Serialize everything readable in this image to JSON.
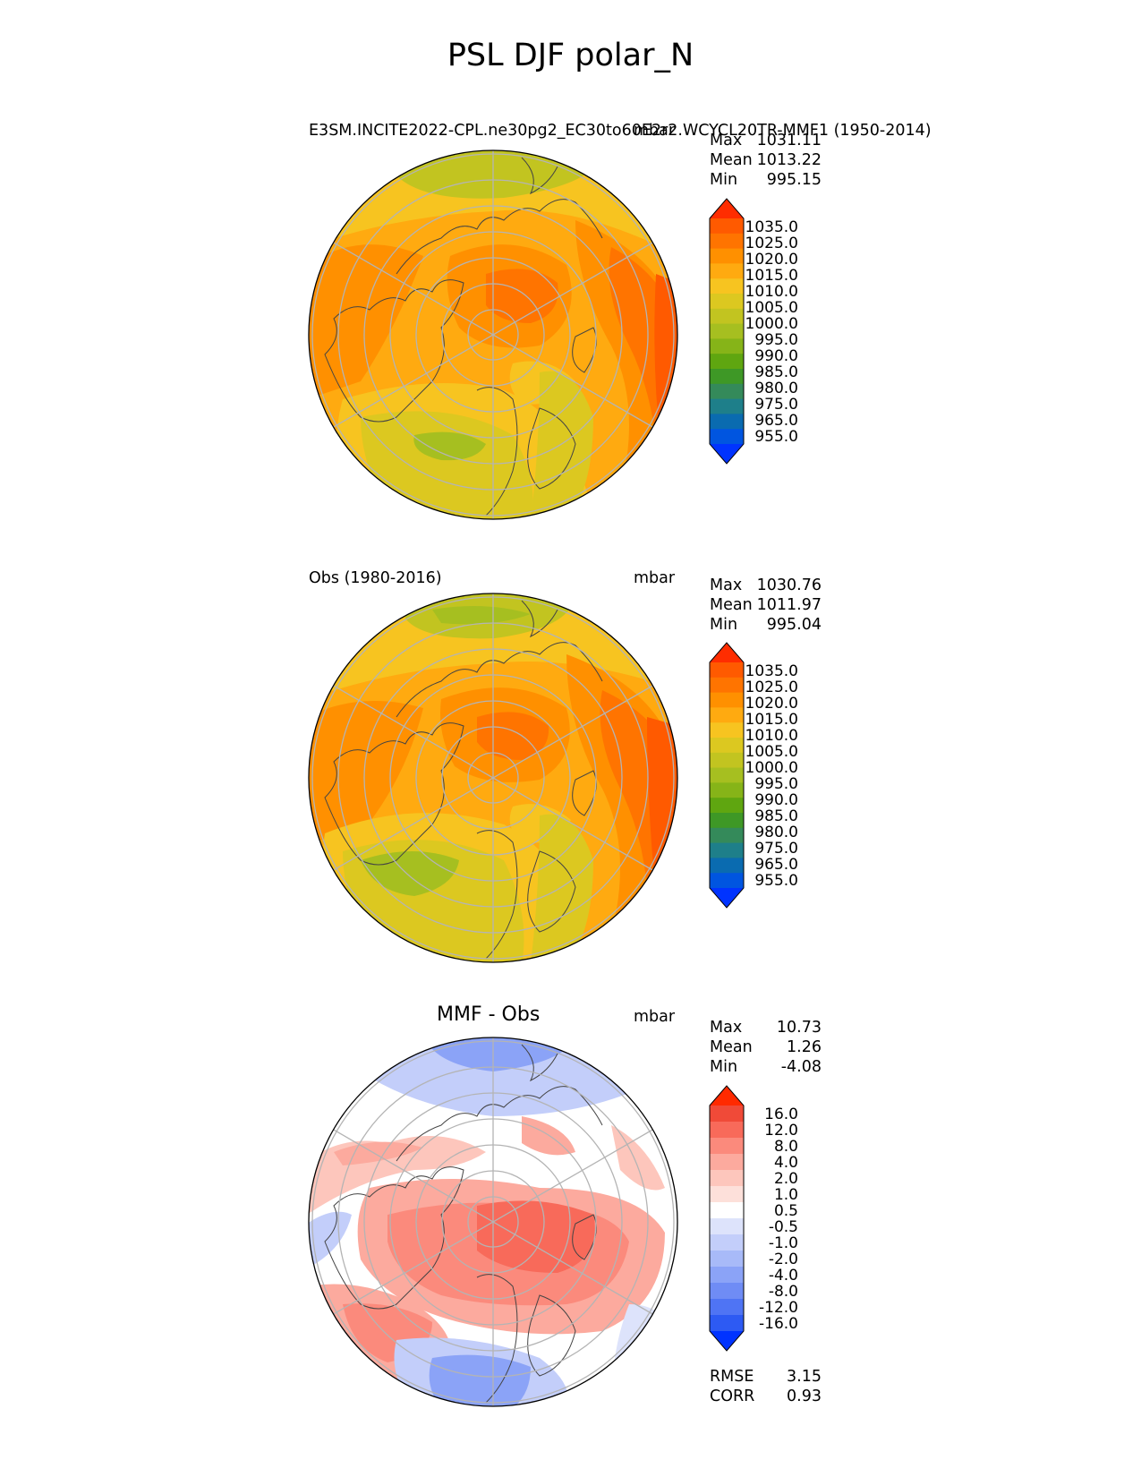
{
  "title": "PSL DJF polar_N",
  "panels": [
    {
      "left_label": "E3SM.INCITE2022-CPL.ne30pg2_EC30to60E2r2.WCYCL20TR-MMF1 (1950-2014)",
      "right_label": "mbar",
      "stats": [
        {
          "key": "Max",
          "value": "1031.11"
        },
        {
          "key": "Mean",
          "value": "1013.22"
        },
        {
          "key": "Min",
          "value": "995.15"
        }
      ]
    },
    {
      "left_label": "Obs (1980-2016)",
      "right_label": "mbar",
      "stats": [
        {
          "key": "Max",
          "value": "1030.76"
        },
        {
          "key": "Mean",
          "value": "1011.97"
        },
        {
          "key": "Min",
          "value": "995.04"
        }
      ]
    },
    {
      "center_title": "MMF - Obs",
      "right_label": "mbar",
      "stats": [
        {
          "key": "Max",
          "value": "10.73"
        },
        {
          "key": "Mean",
          "value": "1.26"
        },
        {
          "key": "Min",
          "value": "-4.08"
        }
      ],
      "metrics": [
        {
          "key": "RMSE",
          "value": "3.15"
        },
        {
          "key": "CORR",
          "value": "0.93"
        }
      ]
    }
  ],
  "colorbar_abs": {
    "ticks": [
      "1035.0",
      "1025.0",
      "1020.0",
      "1015.0",
      "1010.0",
      "1005.0",
      "1000.0",
      "995.0",
      "990.0",
      "985.0",
      "980.0",
      "975.0",
      "965.0",
      "955.0"
    ],
    "colors_top_to_bottom": [
      "#ff2d00",
      "#ff5a00",
      "#ff7400",
      "#ff9000",
      "#ffaa10",
      "#f7c420",
      "#dcc820",
      "#c2c420",
      "#a6bf20",
      "#86b418",
      "#5fa610",
      "#3e9826",
      "#348a5a",
      "#1e7f8a",
      "#0a6bb0",
      "#0055e0",
      "#0033ff"
    ]
  },
  "colorbar_diff": {
    "ticks": [
      "16.0",
      "12.0",
      "8.0",
      "4.0",
      "2.0",
      "1.0",
      "0.5",
      "-0.5",
      "-1.0",
      "-2.0",
      "-4.0",
      "-8.0",
      "-12.0",
      "-16.0"
    ],
    "colors_top_to_bottom": [
      "#ff2a00",
      "#f04a38",
      "#f86a5a",
      "#fb8a7c",
      "#fcaa9e",
      "#fdc6bc",
      "#fde0da",
      "#ffffff",
      "#dde3fb",
      "#c3cefa",
      "#a8baf8",
      "#8ba3f7",
      "#6f8cf5",
      "#4f74f4",
      "#2d5af3",
      "#0033ff"
    ]
  },
  "map_features": [
    "graticule",
    "coastlines",
    "circular boundary"
  ]
}
